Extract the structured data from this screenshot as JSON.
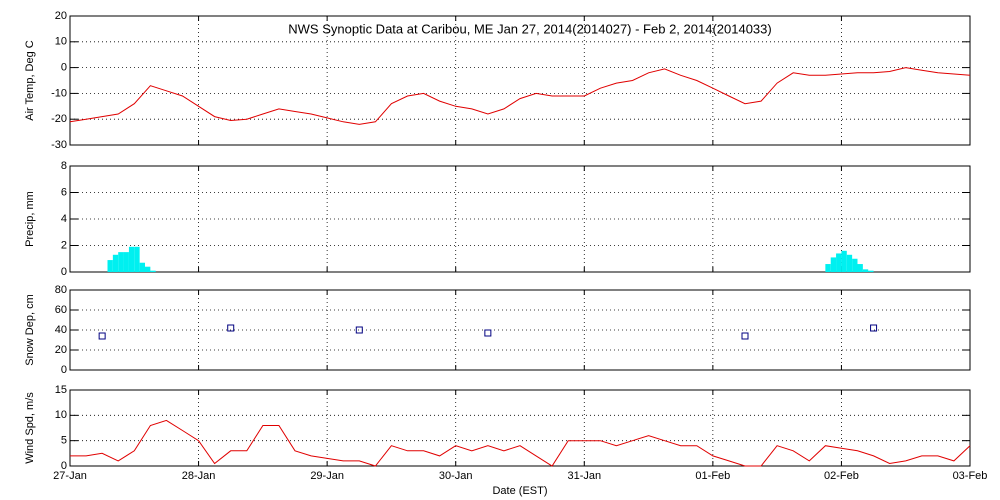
{
  "chart_data": [
    {
      "type": "line",
      "title": "NWS Synoptic Data at Caribou, ME   Jan 27, 2014(2014027) - Feb  2, 2014(2014033)",
      "ylabel": "Air Temp, Deg C",
      "color": "#e00000",
      "grid": true,
      "xlim": [
        0,
        7
      ],
      "xticks": [
        0,
        1,
        2,
        3,
        4,
        5,
        6,
        7
      ],
      "ylim": [
        -30,
        20
      ],
      "yticks": [
        -30,
        -20,
        -10,
        0,
        10,
        20
      ],
      "x": [
        0,
        0.125,
        0.25,
        0.375,
        0.5,
        0.625,
        0.75,
        0.875,
        1,
        1.125,
        1.25,
        1.375,
        1.5,
        1.625,
        1.75,
        1.875,
        2,
        2.125,
        2.25,
        2.375,
        2.5,
        2.625,
        2.75,
        2.875,
        3,
        3.125,
        3.25,
        3.375,
        3.5,
        3.625,
        3.75,
        3.875,
        4,
        4.125,
        4.25,
        4.375,
        4.5,
        4.625,
        4.75,
        4.875,
        5,
        5.125,
        5.25,
        5.375,
        5.5,
        5.625,
        5.75,
        5.875,
        6,
        6.125,
        6.25,
        6.375,
        6.5,
        6.625,
        6.75,
        6.875,
        7
      ],
      "values": [
        -21,
        -20,
        -19,
        -18,
        -14,
        -7,
        -9,
        -11,
        -15,
        -19,
        -20.5,
        -20,
        -18,
        -16,
        -17,
        -18,
        -19.5,
        -21,
        -22,
        -21,
        -14,
        -11,
        -10,
        -13,
        -15,
        -16,
        -18,
        -16,
        -12,
        -10,
        -11,
        -11,
        -11,
        -8,
        -6,
        -5,
        -2,
        -0.5,
        -3,
        -5,
        -8,
        -11,
        -14,
        -13,
        -6,
        -2,
        -3,
        -3,
        -2.5,
        -2,
        -2,
        -1.5,
        0,
        -1,
        -2,
        -2.5,
        -3
      ]
    },
    {
      "type": "histogram",
      "ylabel": "Precip, mm",
      "grid": true,
      "xlim": [
        0,
        7
      ],
      "xticks": [
        0,
        1,
        2,
        3,
        4,
        5,
        6,
        7
      ],
      "ylim": [
        0,
        8
      ],
      "yticks": [
        0,
        2,
        4,
        6,
        8
      ],
      "series": [
        {
          "color": "#00f0f0",
          "bins": [
            0.2917,
            0.3333,
            0.375,
            0.4167,
            0.4583,
            0.5,
            0.5417,
            0.5833,
            0.625,
            0.6667
          ],
          "values": [
            0.9,
            1.3,
            1.5,
            1.5,
            1.9,
            1.9,
            0.7,
            0.4,
            0.1
          ]
        },
        {
          "color": "#00f0f0",
          "bins": [
            5.875,
            5.9167,
            5.9583,
            6.0,
            6.0417,
            6.0833,
            6.125,
            6.1667,
            6.2083,
            6.25
          ],
          "values": [
            0.6,
            1.1,
            1.4,
            1.6,
            1.3,
            1.0,
            0.6,
            0.2,
            0.1
          ]
        }
      ]
    },
    {
      "type": "scatter",
      "ylabel": "Snow Dep, cm",
      "color": "#000080",
      "grid": true,
      "xlim": [
        0,
        7
      ],
      "xticks": [
        0,
        1,
        2,
        3,
        4,
        5,
        6,
        7
      ],
      "ylim": [
        0,
        80
      ],
      "yticks": [
        0,
        20,
        40,
        60,
        80
      ],
      "x": [
        0.25,
        1.25,
        2.25,
        3.25,
        5.25,
        6.25
      ],
      "values": [
        34,
        42,
        40,
        37,
        34,
        42
      ]
    },
    {
      "type": "line",
      "ylabel": "Wind Spd, m/s",
      "xlabel": "Date (EST)",
      "color": "#e00000",
      "grid": true,
      "xlim": [
        0,
        7
      ],
      "xticks": [
        {
          "value": 0,
          "label": "27-Jan"
        },
        {
          "value": 1,
          "label": "28-Jan"
        },
        {
          "value": 2,
          "label": "29-Jan"
        },
        {
          "value": 3,
          "label": "30-Jan"
        },
        {
          "value": 4,
          "label": "31-Jan"
        },
        {
          "value": 5,
          "label": "01-Feb"
        },
        {
          "value": 6,
          "label": "02-Feb"
        },
        {
          "value": 7,
          "label": "03-Feb"
        }
      ],
      "ylim": [
        0,
        15
      ],
      "yticks": [
        0,
        5,
        10,
        15
      ],
      "x": [
        0,
        0.125,
        0.25,
        0.375,
        0.5,
        0.625,
        0.75,
        0.875,
        1,
        1.125,
        1.25,
        1.375,
        1.5,
        1.625,
        1.75,
        1.875,
        2,
        2.125,
        2.25,
        2.375,
        2.5,
        2.625,
        2.75,
        2.875,
        3,
        3.125,
        3.25,
        3.375,
        3.5,
        3.625,
        3.75,
        3.875,
        4,
        4.125,
        4.25,
        4.375,
        4.5,
        4.625,
        4.75,
        4.875,
        5,
        5.125,
        5.25,
        5.375,
        5.5,
        5.625,
        5.75,
        5.875,
        6,
        6.125,
        6.25,
        6.375,
        6.5,
        6.625,
        6.75,
        6.875,
        7
      ],
      "values": [
        2,
        2,
        2.5,
        1,
        3,
        8,
        9,
        7,
        5,
        0.5,
        3,
        3,
        8,
        8,
        3,
        2,
        1.5,
        1,
        1,
        0,
        4,
        3,
        3,
        2,
        4,
        3,
        4,
        3,
        4,
        2,
        0,
        5,
        5,
        5,
        4,
        5,
        6,
        5,
        4,
        4,
        2,
        1,
        0,
        0,
        4,
        3,
        1,
        4,
        3.5,
        3,
        2,
        0.5,
        1,
        2,
        2,
        1,
        4
      ]
    }
  ]
}
